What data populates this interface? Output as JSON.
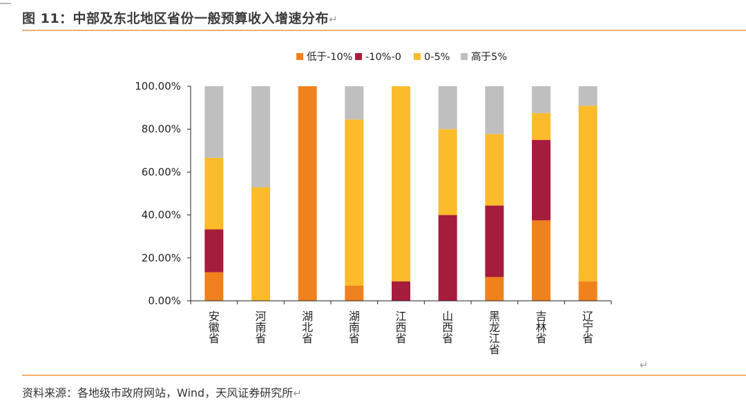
{
  "figure": {
    "title": "图 11：中部及东北地区省份一般预算收入增速分布",
    "return_mark": "↵",
    "source": "资料来源：各地级市政府网站，Wind，天风证券研究所"
  },
  "chart_data": {
    "type": "bar",
    "stacked": true,
    "categories": [
      "安徽省",
      "河南省",
      "湖北省",
      "湖南省",
      "江西省",
      "山西省",
      "黑龙江省",
      "吉林省",
      "辽宁省"
    ],
    "series": [
      {
        "name": "低于-10%",
        "color": "#f0821e",
        "values": [
          13.3,
          0,
          100,
          7.1,
          0,
          0,
          11.1,
          37.5,
          9.1
        ]
      },
      {
        "name": "-10%-0",
        "color": "#a61c3c",
        "values": [
          20.0,
          0,
          0,
          0,
          9.1,
          40.0,
          33.3,
          37.5,
          0
        ]
      },
      {
        "name": "0-5%",
        "color": "#fbbb2a",
        "values": [
          33.3,
          52.9,
          0,
          77.4,
          90.9,
          40.0,
          33.3,
          12.5,
          81.8
        ]
      },
      {
        "name": "高于5%",
        "color": "#bfbfbf",
        "values": [
          33.4,
          47.1,
          0,
          15.5,
          0,
          20.0,
          22.3,
          12.5,
          9.1
        ]
      }
    ],
    "yticks": [
      "0.00%",
      "20.00%",
      "40.00%",
      "60.00%",
      "80.00%",
      "100.00%"
    ],
    "ylim": [
      0,
      100
    ],
    "legend_position": "top-center",
    "grid": false
  }
}
